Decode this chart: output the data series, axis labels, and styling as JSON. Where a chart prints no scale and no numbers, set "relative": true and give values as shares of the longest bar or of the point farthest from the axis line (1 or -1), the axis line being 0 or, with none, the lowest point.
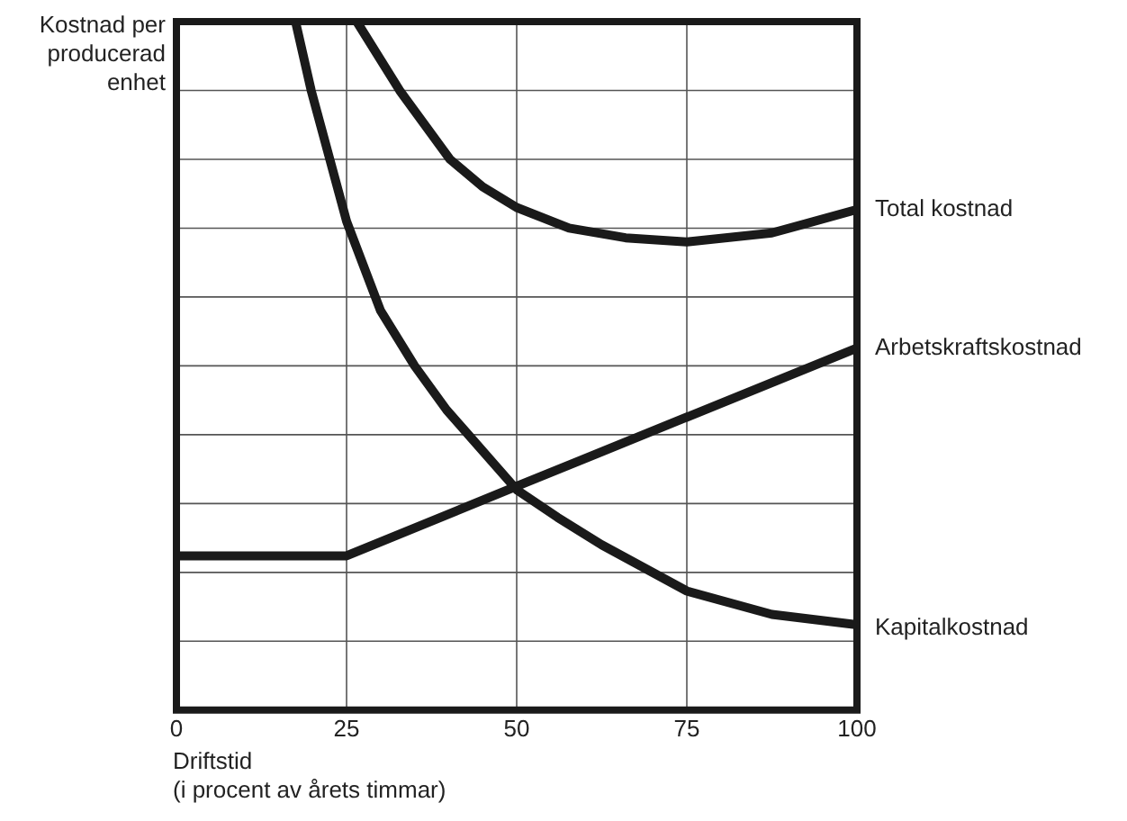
{
  "chart_data": {
    "type": "line",
    "relative": true,
    "ylabel": "Kostnad per\nproducerad\nenhet",
    "xlabel": "Driftstid\n(i procent av årets timmar)",
    "xlim": [
      0,
      100
    ],
    "xticks": [
      0,
      25,
      50,
      75,
      100
    ],
    "grid": true,
    "legend": false,
    "marker": "none",
    "line_style": "solid",
    "series": [
      {
        "name": "Total kostnad",
        "color": "#1a1a1a",
        "x": [
          26.5,
          32.8,
          40.2,
          45,
          50,
          57.7,
          66,
          75,
          87.5,
          100
        ],
        "values": [
          1,
          0.9,
          0.8,
          0.76,
          0.73,
          0.7,
          0.686,
          0.68,
          0.693,
          0.727
        ]
      },
      {
        "name": "Arbetskraftskostnad",
        "color": "#1a1a1a",
        "x": [
          0,
          25,
          50,
          100
        ],
        "values": [
          0.224,
          0.224,
          0.325,
          0.526
        ]
      },
      {
        "name": "Kapitalkostnad",
        "color": "#1a1a1a",
        "x": [
          17.5,
          19.8,
          25,
          30,
          35,
          39.7,
          42.9,
          50,
          56,
          62.5,
          75,
          87.5,
          100
        ],
        "values": [
          1,
          0.9,
          0.71,
          0.58,
          0.5,
          0.436,
          0.4,
          0.32,
          0.28,
          0.24,
          0.173,
          0.139,
          0.124
        ]
      }
    ]
  }
}
